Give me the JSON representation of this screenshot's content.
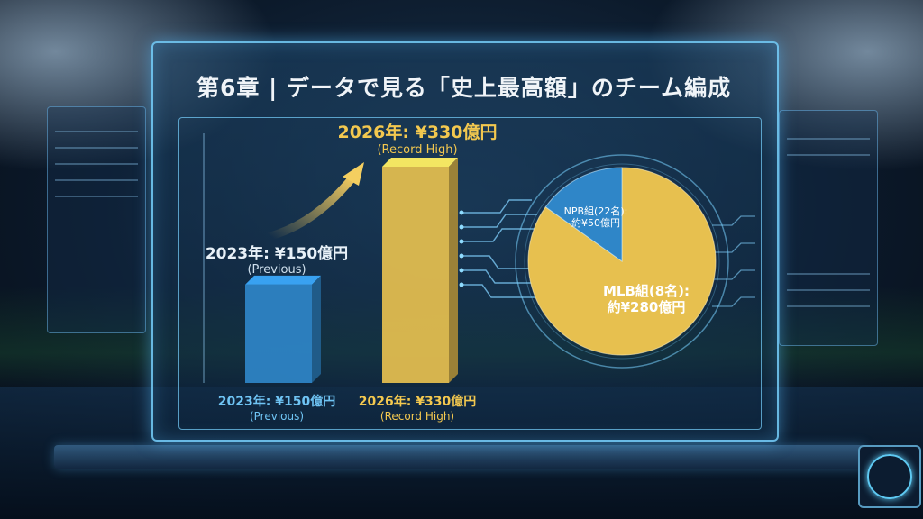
{
  "title": "第6章 | データで見る「史上最高額」のチーム編成",
  "chart_data": [
    {
      "type": "bar",
      "categories": [
        "2023年",
        "2026年"
      ],
      "values": [
        150,
        330
      ],
      "unit": "億円",
      "ylim": [
        0,
        330
      ],
      "colors": [
        "#2f86c8",
        "#e7c04f"
      ],
      "labels": [
        {
          "value": "2023年: ¥150億円",
          "note": "(Previous)"
        },
        {
          "value": "2026年: ¥330億円",
          "note": "(Record High)"
        }
      ],
      "callouts": [
        {
          "value": "2023年: ¥150億円",
          "note": "(Previous)"
        },
        {
          "value": "2026年: ¥330億円",
          "note": "(Record High)"
        }
      ]
    },
    {
      "type": "pie",
      "slices": [
        {
          "name": "MLB組",
          "count": "8名",
          "value": 280,
          "label_line1": "MLB組(8名):",
          "label_line2": "約¥280億円",
          "color": "#e7c04f"
        },
        {
          "name": "NPB組",
          "count": "22名",
          "value": 50,
          "label_line1": "NPB組(22名):",
          "label_line2": "約¥50億円",
          "color": "#2f86c8"
        }
      ]
    }
  ],
  "colors": {
    "gold": "#e7c04f",
    "blue": "#2f86c8",
    "accent": "#6fd0ff"
  }
}
